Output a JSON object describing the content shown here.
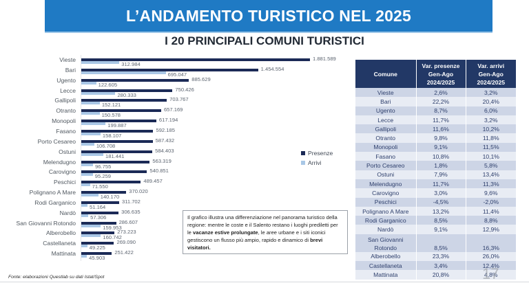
{
  "header": {
    "title": "L’ANDAMENTO TURISTICO NEL 2025",
    "subtitle": "I 20 PRINCIPALI COMUNI TURISTICI",
    "band_color": "#1f7ac4"
  },
  "chart_data": {
    "type": "bar",
    "orientation": "horizontal",
    "title": "I 20 principali comuni turistici",
    "xlabel": "",
    "ylabel": "",
    "grid": false,
    "legend_position": "right",
    "categories": [
      "Vieste",
      "Bari",
      "Ugento",
      "Lecce",
      "Gallipoli",
      "Otranto",
      "Monopoli",
      "Fasano",
      "Porto Cesareo",
      "Ostuni",
      "Melendugno",
      "Carovigno",
      "Peschici",
      "Polignano A Mare",
      "Rodi Garganico",
      "Nardò",
      "San Giovanni Rotondo",
      "Alberobello",
      "Castellaneta",
      "Mattinata"
    ],
    "series": [
      {
        "name": "Presenze",
        "color": "#1b2a56",
        "values": [
          1881589,
          1454554,
          885629,
          750426,
          703767,
          657169,
          617194,
          592185,
          587432,
          584403,
          563319,
          540851,
          489457,
          370020,
          311702,
          306635,
          286607,
          273223,
          269090,
          251422
        ],
        "labels": [
          "1.881.589",
          "1.454.554",
          "885.629",
          "750.426",
          "703.767",
          "657.169",
          "617.194",
          "592.185",
          "587.432",
          "584.403",
          "563.319",
          "540.851",
          "489.457",
          "370.020",
          "311.702",
          "306.635",
          "286.607",
          "273.223",
          "269.090",
          "251.422"
        ]
      },
      {
        "name": "Arrivi",
        "color": "#a9c7e6",
        "values": [
          312984,
          695047,
          122605,
          280333,
          152121,
          150578,
          199887,
          158107,
          106708,
          181441,
          96755,
          95259,
          71550,
          140170,
          51164,
          57306,
          159953,
          160742,
          49225,
          45903
        ],
        "labels": [
          "312.984",
          "695.047",
          "122.605",
          "280.333",
          "152.121",
          "150.578",
          "199.887",
          "158.107",
          "106.708",
          "181.441",
          "96.755",
          "95.259",
          "71.550",
          "140.170",
          "51.164",
          "57.306",
          "159.953",
          "160.742",
          "49.225",
          "45.903"
        ]
      }
    ]
  },
  "legend": {
    "items": [
      {
        "label": "Presenze",
        "color": "#1b2a56"
      },
      {
        "label": "Arrivi",
        "color": "#a9c7e6"
      }
    ]
  },
  "note": {
    "part1": "Il grafico illustra una differenziazione nel panorama turistico della regione: mentre le coste e il Salento restano i luoghi prediletti per le ",
    "bold1": "vacanze estive prolungate",
    "part2": ", le aree urbane e i siti iconici gestiscono un flusso più ampio, rapido e dinamico di ",
    "bold2": "brevi visitatori."
  },
  "table": {
    "headers": [
      "Comune",
      "Var. presenze Gen-Ago 2024/2025",
      "Var. arrivi Gen-Ago 2024/2025"
    ],
    "header_lines": {
      "comune": "Comune",
      "vp": [
        "Var. presenze",
        "Gen-Ago",
        "2024/2025"
      ],
      "va": [
        "Var. arrivi",
        "Gen-Ago",
        "2024/2025"
      ]
    },
    "rows": [
      {
        "comune": "Vieste",
        "var_presenze": "2,6%",
        "var_arrivi": "3,2%"
      },
      {
        "comune": "Bari",
        "var_presenze": "22,2%",
        "var_arrivi": "20,4%"
      },
      {
        "comune": "Ugento",
        "var_presenze": "8,7%",
        "var_arrivi": "6,0%"
      },
      {
        "comune": "Lecce",
        "var_presenze": "11,7%",
        "var_arrivi": "3,2%"
      },
      {
        "comune": "Gallipoli",
        "var_presenze": "11,6%",
        "var_arrivi": "10,2%"
      },
      {
        "comune": "Otranto",
        "var_presenze": "9,8%",
        "var_arrivi": "11,8%"
      },
      {
        "comune": "Monopoli",
        "var_presenze": "9,1%",
        "var_arrivi": "11,5%"
      },
      {
        "comune": "Fasano",
        "var_presenze": "10,8%",
        "var_arrivi": "10,1%"
      },
      {
        "comune": "Porto Cesareo",
        "var_presenze": "1,8%",
        "var_arrivi": "5,8%"
      },
      {
        "comune": "Ostuni",
        "var_presenze": "7,9%",
        "var_arrivi": "13,4%"
      },
      {
        "comune": "Melendugno",
        "var_presenze": "11,7%",
        "var_arrivi": "11,3%"
      },
      {
        "comune": "Carovigno",
        "var_presenze": "3,0%",
        "var_arrivi": "9,6%"
      },
      {
        "comune": "Peschici",
        "var_presenze": "-4,5%",
        "var_arrivi": "-2,0%"
      },
      {
        "comune": "Polignano A Mare",
        "var_presenze": "13,2%",
        "var_arrivi": "11,4%"
      },
      {
        "comune": "Rodi Garganico",
        "var_presenze": "8,5%",
        "var_arrivi": "8,8%"
      },
      {
        "comune": "Nardò",
        "var_presenze": "9,1%",
        "var_arrivi": "12,9%"
      },
      {
        "comune": "San Giovanni Rotondo",
        "var_presenze": "8,5%",
        "var_arrivi": "16,3%"
      },
      {
        "comune": "Alberobello",
        "var_presenze": "23,3%",
        "var_arrivi": "26,0%"
      },
      {
        "comune": "Castellaneta",
        "var_presenze": "3,4%",
        "var_arrivi": "12,4%"
      },
      {
        "comune": "Mattinata",
        "var_presenze": "20,8%",
        "var_arrivi": "4,8%"
      }
    ],
    "header_color": "#223866"
  },
  "footer": {
    "source": "Fonte: elaborazioni Questlab su dati Istat/Spot",
    "page_number": "17"
  }
}
